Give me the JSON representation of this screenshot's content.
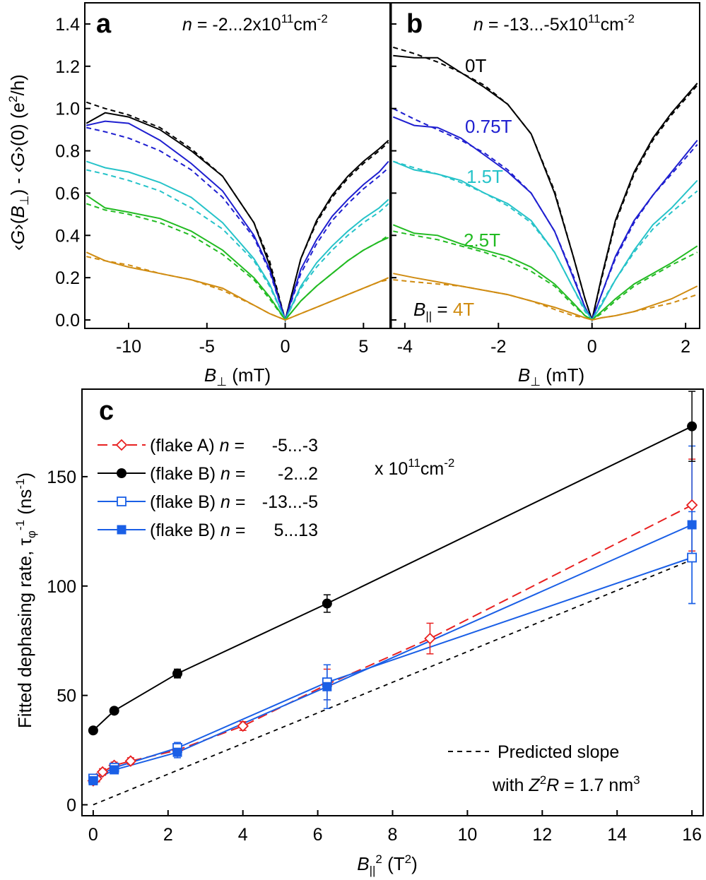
{
  "colors": {
    "0T": "#000000",
    "0.75T": "#1f1fd0",
    "1.5T": "#26c3c9",
    "2.5T": "#22bb22",
    "4T": "#d08c12",
    "flakeA": "#e82020",
    "flakeB_holes_mid": "#000000",
    "flakeB_blue": "#1a5fe6"
  },
  "panels": {
    "a": {
      "label": "a",
      "density_label": "n = -2...2x10^11cm^-2",
      "xlabel": "B⊥ (mT)",
      "ylabel": "‹G›(B⊥) - ‹G›(0) (e²/h)",
      "xticks": [
        "-10",
        "-5",
        "0",
        "5"
      ],
      "yticks": [
        "0.0",
        "0.2",
        "0.4",
        "0.6",
        "0.8",
        "1.0",
        "1.2",
        "1.4"
      ]
    },
    "b": {
      "label": "b",
      "density_label": "n = -13...-5x10^11cm^-2",
      "xlabel": "B⊥ (mT)",
      "xticks": [
        "-4",
        "-2",
        "0",
        "2"
      ],
      "curve_labels": [
        "0T",
        "0.75T",
        "1.5T",
        "2.5T"
      ],
      "last_label_prefix": "B|| = ",
      "last_label_value": "4T"
    },
    "c": {
      "label": "c",
      "xlabel": "B||² (T²)",
      "ylabel": "Fitted dephasing rate, τφ⁻¹ (ns⁻¹)",
      "xticks": [
        "0",
        "2",
        "4",
        "6",
        "8",
        "10",
        "12",
        "14",
        "16"
      ],
      "yticks": [
        "0",
        "50",
        "100",
        "150"
      ],
      "legend": [
        {
          "text_prefix": "(flake A) n =",
          "text_range": "-5...-3"
        },
        {
          "text_prefix": "(flake B) n =",
          "text_range": "-2...2"
        },
        {
          "text_prefix": "(flake B) n =",
          "text_range": "-13...-5"
        },
        {
          "text_prefix": "(flake B) n =",
          "text_range": "5...13"
        }
      ],
      "legend_unit": "x 10^11cm^-2",
      "prediction_line1": "Predicted slope",
      "prediction_line2": "with Z²R = 1.7 nm³"
    }
  },
  "chart_data": [
    {
      "type": "line",
      "panel": "a",
      "xlabel": "B⊥ (mT)",
      "ylabel": "‹G›(B⊥) - ‹G›(0) (e²/h)",
      "xlim": [
        -12.8,
        6.7
      ],
      "ylim": [
        -0.04,
        1.5
      ],
      "series": [
        {
          "name": "0T",
          "color": "#000000",
          "x": [
            -12.7,
            -11.5,
            -10,
            -8,
            -6,
            -4,
            -2,
            -1,
            0,
            1,
            2,
            3,
            4,
            5,
            6,
            6.6
          ],
          "y": [
            0.93,
            0.98,
            0.96,
            0.9,
            0.8,
            0.68,
            0.46,
            0.26,
            0.0,
            0.29,
            0.47,
            0.59,
            0.68,
            0.75,
            0.81,
            0.85
          ],
          "fit": [
            1.03,
            1.0,
            0.97,
            0.91,
            0.81,
            0.68,
            0.46,
            0.28,
            0.0,
            0.29,
            0.46,
            0.58,
            0.67,
            0.74,
            0.8,
            0.84
          ]
        },
        {
          "name": "0.75T",
          "color": "#1f1fd0",
          "x": [
            -12.7,
            -11.5,
            -10,
            -8,
            -6,
            -4,
            -2,
            -1,
            0,
            1,
            2,
            3,
            4,
            5,
            6,
            6.6
          ],
          "y": [
            0.92,
            0.94,
            0.93,
            0.85,
            0.74,
            0.61,
            0.4,
            0.24,
            0.0,
            0.24,
            0.38,
            0.49,
            0.57,
            0.64,
            0.7,
            0.75
          ],
          "fit": [
            0.91,
            0.89,
            0.86,
            0.8,
            0.71,
            0.58,
            0.39,
            0.23,
            0.0,
            0.22,
            0.36,
            0.47,
            0.55,
            0.62,
            0.68,
            0.72
          ]
        },
        {
          "name": "1.5T",
          "color": "#26c3c9",
          "x": [
            -12.7,
            -11.5,
            -10,
            -8,
            -6,
            -4,
            -2,
            -1,
            0,
            1,
            2,
            3,
            4,
            5,
            6,
            6.6
          ],
          "y": [
            0.75,
            0.72,
            0.7,
            0.65,
            0.58,
            0.46,
            0.29,
            0.17,
            0.0,
            0.16,
            0.27,
            0.35,
            0.42,
            0.48,
            0.53,
            0.57
          ],
          "fit": [
            0.71,
            0.69,
            0.66,
            0.61,
            0.53,
            0.43,
            0.28,
            0.16,
            0.0,
            0.15,
            0.25,
            0.33,
            0.4,
            0.46,
            0.51,
            0.55
          ]
        },
        {
          "name": "2.5T",
          "color": "#22bb22",
          "x": [
            -12.7,
            -11.5,
            -10,
            -8,
            -6,
            -4,
            -2,
            -1,
            0,
            1,
            2,
            3,
            4,
            5,
            6,
            6.6
          ],
          "y": [
            0.59,
            0.53,
            0.51,
            0.48,
            0.42,
            0.33,
            0.2,
            0.11,
            0.0,
            0.09,
            0.16,
            0.22,
            0.28,
            0.33,
            0.37,
            0.39
          ],
          "fit": [
            0.55,
            0.52,
            0.5,
            0.46,
            0.4,
            0.31,
            0.19,
            0.1,
            0.0,
            0.09,
            0.16,
            0.22,
            0.28,
            0.33,
            0.37,
            0.4
          ]
        },
        {
          "name": "B|| = 4T",
          "color": "#d08c12",
          "x": [
            -12.7,
            -11.5,
            -10,
            -8,
            -6,
            -4,
            -2,
            -1,
            0,
            1,
            2,
            3,
            4,
            5,
            6,
            6.6
          ],
          "y": [
            0.32,
            0.28,
            0.25,
            0.22,
            0.19,
            0.15,
            0.07,
            0.03,
            0.0,
            0.03,
            0.06,
            0.09,
            0.12,
            0.15,
            0.18,
            0.2
          ],
          "fit": [
            0.3,
            0.28,
            0.26,
            0.22,
            0.19,
            0.14,
            0.07,
            0.03,
            0.0,
            0.03,
            0.06,
            0.09,
            0.12,
            0.15,
            0.18,
            0.19
          ]
        }
      ]
    },
    {
      "type": "line",
      "panel": "b",
      "xlabel": "B⊥ (mT)",
      "xlim": [
        -4.3,
        2.3
      ],
      "ylim": [
        -0.04,
        1.5
      ],
      "series": [
        {
          "name": "0T",
          "color": "#000000",
          "x": [
            -4.25,
            -3.8,
            -3.3,
            -2.8,
            -2.3,
            -1.8,
            -1.3,
            -0.8,
            -0.4,
            -0.15,
            0,
            0.2,
            0.5,
            0.9,
            1.3,
            1.7,
            2.25
          ],
          "y": [
            1.25,
            1.24,
            1.24,
            1.17,
            1.1,
            1.02,
            0.88,
            0.6,
            0.3,
            0.1,
            0.0,
            0.2,
            0.47,
            0.7,
            0.86,
            0.98,
            1.12
          ],
          "fit": [
            1.29,
            1.26,
            1.22,
            1.17,
            1.11,
            1.02,
            0.88,
            0.61,
            0.3,
            0.1,
            0.0,
            0.19,
            0.46,
            0.69,
            0.85,
            0.97,
            1.11
          ]
        },
        {
          "name": "0.75T",
          "color": "#1f1fd0",
          "x": [
            -4.25,
            -3.8,
            -3.3,
            -2.8,
            -2.3,
            -1.8,
            -1.3,
            -0.8,
            -0.4,
            -0.15,
            0,
            0.2,
            0.5,
            0.9,
            1.3,
            1.7,
            2.25
          ],
          "y": [
            0.96,
            0.92,
            0.91,
            0.86,
            0.78,
            0.7,
            0.6,
            0.42,
            0.2,
            0.06,
            0.0,
            0.12,
            0.3,
            0.47,
            0.59,
            0.7,
            0.85
          ],
          "fit": [
            1.0,
            0.95,
            0.9,
            0.85,
            0.79,
            0.71,
            0.6,
            0.42,
            0.21,
            0.06,
            0.0,
            0.12,
            0.29,
            0.46,
            0.59,
            0.69,
            0.83
          ]
        },
        {
          "name": "1.5T",
          "color": "#26c3c9",
          "x": [
            -4.25,
            -3.8,
            -3.3,
            -2.8,
            -2.3,
            -1.8,
            -1.3,
            -0.8,
            -0.4,
            -0.15,
            0,
            0.2,
            0.5,
            0.9,
            1.3,
            1.7,
            2.25
          ],
          "y": [
            0.75,
            0.71,
            0.69,
            0.66,
            0.6,
            0.55,
            0.47,
            0.32,
            0.15,
            0.05,
            0.0,
            0.07,
            0.19,
            0.33,
            0.45,
            0.53,
            0.66
          ],
          "fit": [
            0.75,
            0.72,
            0.69,
            0.65,
            0.6,
            0.54,
            0.46,
            0.32,
            0.15,
            0.04,
            0.0,
            0.08,
            0.19,
            0.32,
            0.43,
            0.51,
            0.61
          ]
        },
        {
          "name": "2.5T",
          "color": "#22bb22",
          "x": [
            -4.25,
            -3.8,
            -3.3,
            -2.8,
            -2.3,
            -1.8,
            -1.3,
            -0.8,
            -0.4,
            -0.15,
            0,
            0.2,
            0.5,
            0.9,
            1.3,
            1.7,
            2.25
          ],
          "y": [
            0.45,
            0.41,
            0.4,
            0.36,
            0.33,
            0.3,
            0.25,
            0.17,
            0.08,
            0.02,
            0.0,
            0.04,
            0.1,
            0.17,
            0.22,
            0.27,
            0.35
          ],
          "fit": [
            0.42,
            0.4,
            0.38,
            0.35,
            0.32,
            0.28,
            0.23,
            0.16,
            0.07,
            0.02,
            0.0,
            0.03,
            0.09,
            0.16,
            0.21,
            0.26,
            0.32
          ]
        },
        {
          "name": "4T",
          "color": "#d08c12",
          "x": [
            -4.25,
            -3.8,
            -3.3,
            -2.8,
            -2.3,
            -1.8,
            -1.3,
            -0.8,
            -0.4,
            -0.15,
            0,
            0.2,
            0.5,
            0.9,
            1.3,
            1.7,
            2.25
          ],
          "y": [
            0.22,
            0.2,
            0.18,
            0.16,
            0.14,
            0.12,
            0.09,
            0.06,
            0.03,
            0.01,
            0.0,
            0.01,
            0.02,
            0.04,
            0.07,
            0.1,
            0.16
          ],
          "fit": [
            0.19,
            0.18,
            0.17,
            0.16,
            0.14,
            0.12,
            0.09,
            0.05,
            0.02,
            0.01,
            0.0,
            0.01,
            0.02,
            0.04,
            0.06,
            0.08,
            0.12
          ]
        }
      ]
    },
    {
      "type": "scatter",
      "panel": "c",
      "xlabel": "B||² (T²)",
      "ylabel": "Fitted dephasing rate, τφ⁻¹ (ns⁻¹)",
      "xlim": [
        -0.3,
        16.3
      ],
      "ylim": [
        -5,
        190
      ],
      "series": [
        {
          "name": "(flake A) n = -5...-3",
          "color": "#e82020",
          "marker": "diamond-open",
          "line": "dashed",
          "x": [
            0,
            0.09,
            0.25,
            0.56,
            1,
            2.25,
            4,
            6.25,
            9,
            16
          ],
          "y": [
            11,
            12,
            15,
            18,
            20,
            25,
            36,
            55,
            76,
            137
          ],
          "err": [
            1.5,
            1.5,
            1.5,
            1.5,
            1.5,
            2,
            2,
            7,
            7,
            21
          ]
        },
        {
          "name": "(flake B) n = -2...2",
          "color": "#000000",
          "marker": "circle-filled",
          "line": "solid",
          "x": [
            0,
            0.5625,
            2.25,
            6.25,
            16
          ],
          "y": [
            34,
            43,
            60,
            92,
            173
          ],
          "err": [
            1,
            1,
            2,
            4,
            16
          ]
        },
        {
          "name": "(flake B) n = -13...-5",
          "color": "#1a5fe6",
          "marker": "square-open",
          "line": "solid",
          "x": [
            0,
            0.5625,
            2.25,
            6.25,
            16
          ],
          "y": [
            12,
            17,
            26,
            56,
            113
          ],
          "err": [
            1,
            1.5,
            2.5,
            8,
            21
          ]
        },
        {
          "name": "(flake B) n = 5...13",
          "color": "#1a5fe6",
          "marker": "square-filled",
          "line": "solid",
          "x": [
            0,
            0.5625,
            2.25,
            6.25,
            16
          ],
          "y": [
            11,
            16,
            24,
            54,
            128
          ],
          "err": [
            1,
            1.5,
            2.5,
            10,
            36
          ]
        },
        {
          "name": "Predicted slope",
          "color": "#000000",
          "marker": "none",
          "line": "dashed",
          "x": [
            0,
            16
          ],
          "y": [
            0,
            112
          ]
        }
      ]
    }
  ]
}
